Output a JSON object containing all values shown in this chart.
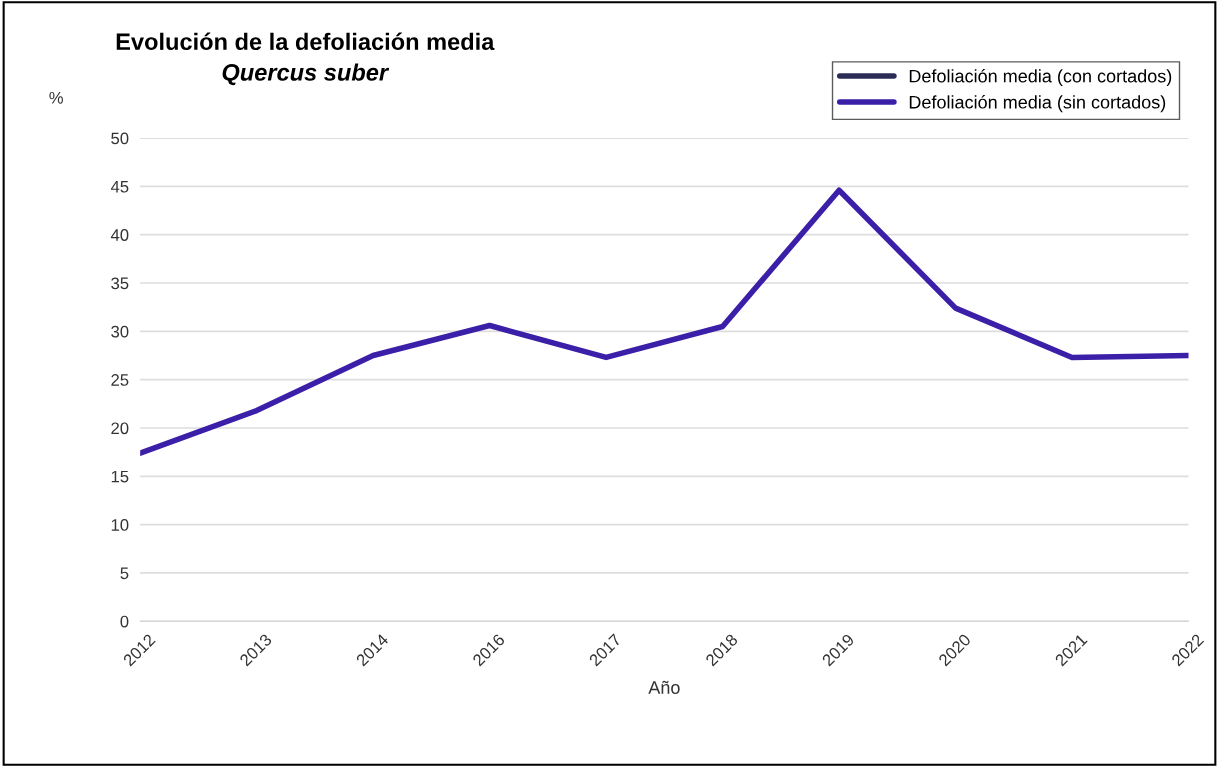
{
  "chart_data": {
    "type": "line",
    "title": "Evolución de la defoliación media",
    "subtitle": "Quercus suber",
    "xlabel": "Año",
    "ylabel": "%",
    "categories": [
      "2012",
      "2013",
      "2014",
      "2016",
      "2017",
      "2018",
      "2019",
      "2020",
      "2021",
      "2022"
    ],
    "series": [
      {
        "name": "Defoliación media (con cortados)",
        "color": "#2b2b55",
        "values": [
          null,
          null,
          null,
          null,
          null,
          null,
          null,
          null,
          null,
          null
        ]
      },
      {
        "name": "Defoliación media (sin cortados)",
        "color": "#3b1fa8",
        "values": [
          17.4,
          21.8,
          27.5,
          30.6,
          27.3,
          30.5,
          44.6,
          32.4,
          27.3,
          27.5
        ]
      }
    ],
    "ylim": [
      0,
      50
    ],
    "yticks": [
      0,
      5,
      10,
      15,
      20,
      25,
      30,
      35,
      40,
      45,
      50
    ],
    "grid": "y",
    "legend": "top right",
    "marker": "none",
    "line_style": "solid"
  }
}
